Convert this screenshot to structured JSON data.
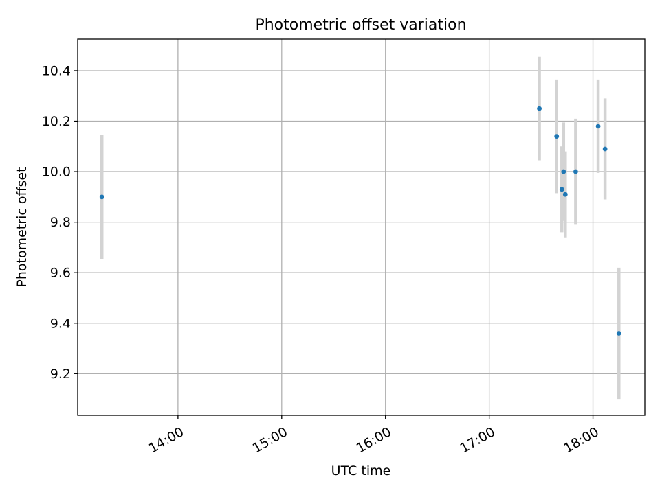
{
  "chart_data": {
    "type": "scatter",
    "title": "Photometric offset variation",
    "xlabel": "UTC time",
    "ylabel": "Photometric offset",
    "x_tick_labels": [
      "14:00",
      "15:00",
      "16:00",
      "17:00",
      "18:00"
    ],
    "y_tick_labels": [
      "9.2",
      "9.4",
      "9.6",
      "9.8",
      "10.0",
      "10.2",
      "10.4"
    ],
    "y_ticks": [
      9.2,
      9.4,
      9.6,
      9.8,
      10.0,
      10.2,
      10.4
    ],
    "xlim": [
      "13:02",
      "18:30"
    ],
    "ylim": [
      9.035,
      10.525
    ],
    "grid": true,
    "points": [
      {
        "x": "13:16",
        "y": 9.9,
        "yerr": 0.245
      },
      {
        "x": "17:29",
        "y": 10.25,
        "yerr": 0.205
      },
      {
        "x": "17:39",
        "y": 10.14,
        "yerr": 0.225
      },
      {
        "x": "17:42",
        "y": 9.93,
        "yerr": 0.17
      },
      {
        "x": "17:43",
        "y": 10.0,
        "yerr": 0.195
      },
      {
        "x": "17:44",
        "y": 9.91,
        "yerr": 0.17
      },
      {
        "x": "17:50",
        "y": 10.0,
        "yerr": 0.21
      },
      {
        "x": "18:03",
        "y": 10.18,
        "yerr": 0.185
      },
      {
        "x": "18:07",
        "y": 10.09,
        "yerr": 0.2
      },
      {
        "x": "18:15",
        "y": 9.36,
        "yerr": 0.26
      }
    ],
    "colors": {
      "marker": "#1f77b4",
      "errorbar": "#d3d3d3",
      "grid": "#b0b0b0",
      "axes": "#000000"
    }
  }
}
